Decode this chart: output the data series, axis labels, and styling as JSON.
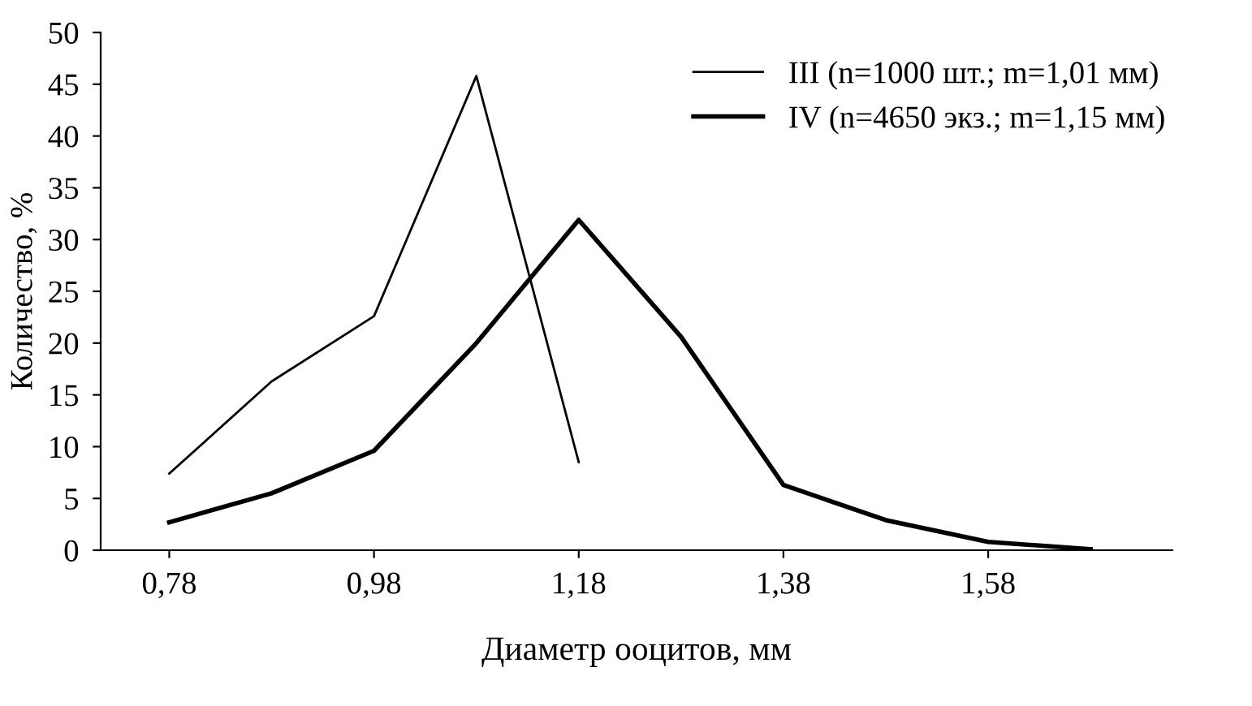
{
  "chart_data": {
    "type": "line",
    "xlabel": "Диаметр ооцитов, мм",
    "ylabel": "Количество, %",
    "xlim": [
      0.713,
      1.76
    ],
    "xticks": [
      {
        "value": 0.78,
        "label": "0,78"
      },
      {
        "value": 0.98,
        "label": "0,98"
      },
      {
        "value": 1.18,
        "label": "1,18"
      },
      {
        "value": 1.38,
        "label": "1,38"
      },
      {
        "value": 1.58,
        "label": "1,58"
      }
    ],
    "ylim": [
      0,
      50
    ],
    "yticks": [
      0,
      5,
      10,
      15,
      20,
      25,
      30,
      35,
      40,
      45,
      50
    ],
    "grid": false,
    "legend": "top right",
    "marker": "none",
    "line_style": "solid",
    "series": [
      {
        "name": "III (n=1000 шт.; m=1,01 мм)",
        "color": "#000000",
        "x": [
          0.78,
          0.88,
          0.98,
          1.08,
          1.18
        ],
        "values": [
          7.4,
          16.3,
          22.6,
          45.8,
          8.5
        ]
      },
      {
        "name": "IV (n=4650 экз.; m=1,15 мм)",
        "color": "#000000",
        "x": [
          0.78,
          0.88,
          0.98,
          1.08,
          1.18,
          1.28,
          1.38,
          1.48,
          1.58,
          1.68
        ],
        "values": [
          2.7,
          5.5,
          9.6,
          20.0,
          31.9,
          20.6,
          6.3,
          2.9,
          0.8,
          0.1
        ]
      }
    ]
  }
}
